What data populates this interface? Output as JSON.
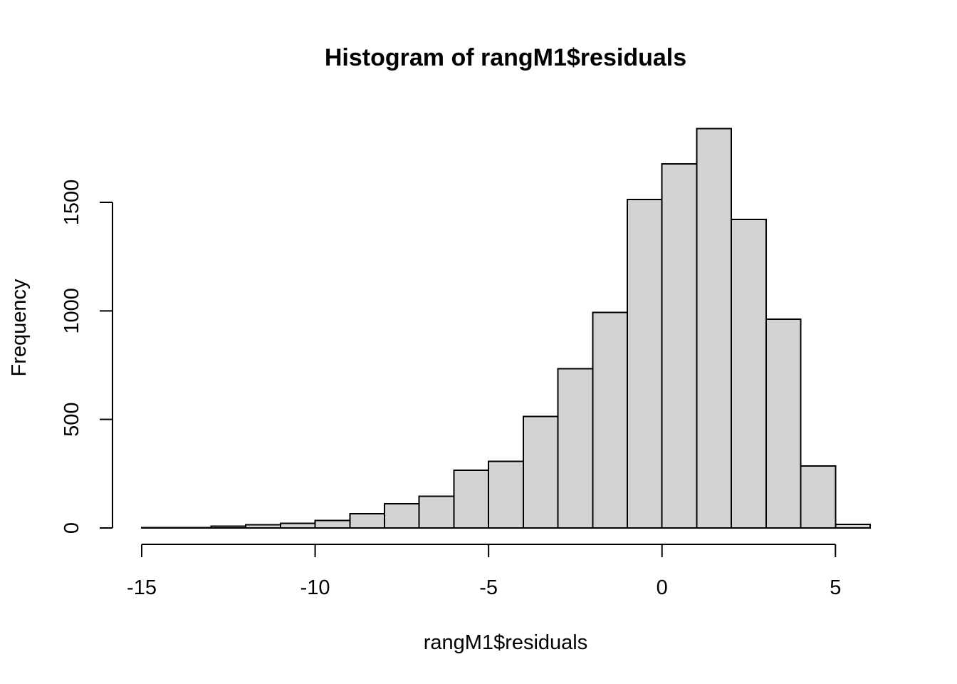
{
  "chart_data": {
    "type": "bar",
    "title": "Histogram of rangM1$residuals",
    "xlabel": "rangM1$residuals",
    "ylabel": "Frequency",
    "x_ticks": [
      -15,
      -10,
      -5,
      0,
      5
    ],
    "x_tick_labels": [
      "-15",
      "-10",
      "-5",
      "0",
      "5"
    ],
    "y_ticks": [
      0,
      500,
      1000,
      1500
    ],
    "y_tick_labels": [
      "0",
      "500",
      "1000",
      "1500"
    ],
    "xlim": [
      -15,
      6
    ],
    "ylim": [
      0,
      1840
    ],
    "bin_width": 1,
    "bins": [
      {
        "x0": -15,
        "x1": -14,
        "count": 1
      },
      {
        "x0": -14,
        "x1": -13,
        "count": 1
      },
      {
        "x0": -13,
        "x1": -12,
        "count": 9
      },
      {
        "x0": -12,
        "x1": -11,
        "count": 14
      },
      {
        "x0": -11,
        "x1": -10,
        "count": 21
      },
      {
        "x0": -10,
        "x1": -9,
        "count": 34
      },
      {
        "x0": -9,
        "x1": -8,
        "count": 65
      },
      {
        "x0": -8,
        "x1": -7,
        "count": 112
      },
      {
        "x0": -7,
        "x1": -6,
        "count": 146
      },
      {
        "x0": -6,
        "x1": -5,
        "count": 266
      },
      {
        "x0": -5,
        "x1": -4,
        "count": 307
      },
      {
        "x0": -4,
        "x1": -3,
        "count": 513
      },
      {
        "x0": -3,
        "x1": -2,
        "count": 733
      },
      {
        "x0": -2,
        "x1": -1,
        "count": 993
      },
      {
        "x0": -1,
        "x1": 0,
        "count": 1513
      },
      {
        "x0": 0,
        "x1": 1,
        "count": 1677
      },
      {
        "x0": 1,
        "x1": 2,
        "count": 1840
      },
      {
        "x0": 2,
        "x1": 3,
        "count": 1421
      },
      {
        "x0": 3,
        "x1": 4,
        "count": 962
      },
      {
        "x0": 4,
        "x1": 5,
        "count": 285
      },
      {
        "x0": 5,
        "x1": 6,
        "count": 17
      }
    ],
    "grid": false,
    "legend": "none",
    "colors": {
      "bar_fill": "#d3d3d3",
      "bar_stroke": "#000000",
      "background": "#ffffff"
    }
  }
}
